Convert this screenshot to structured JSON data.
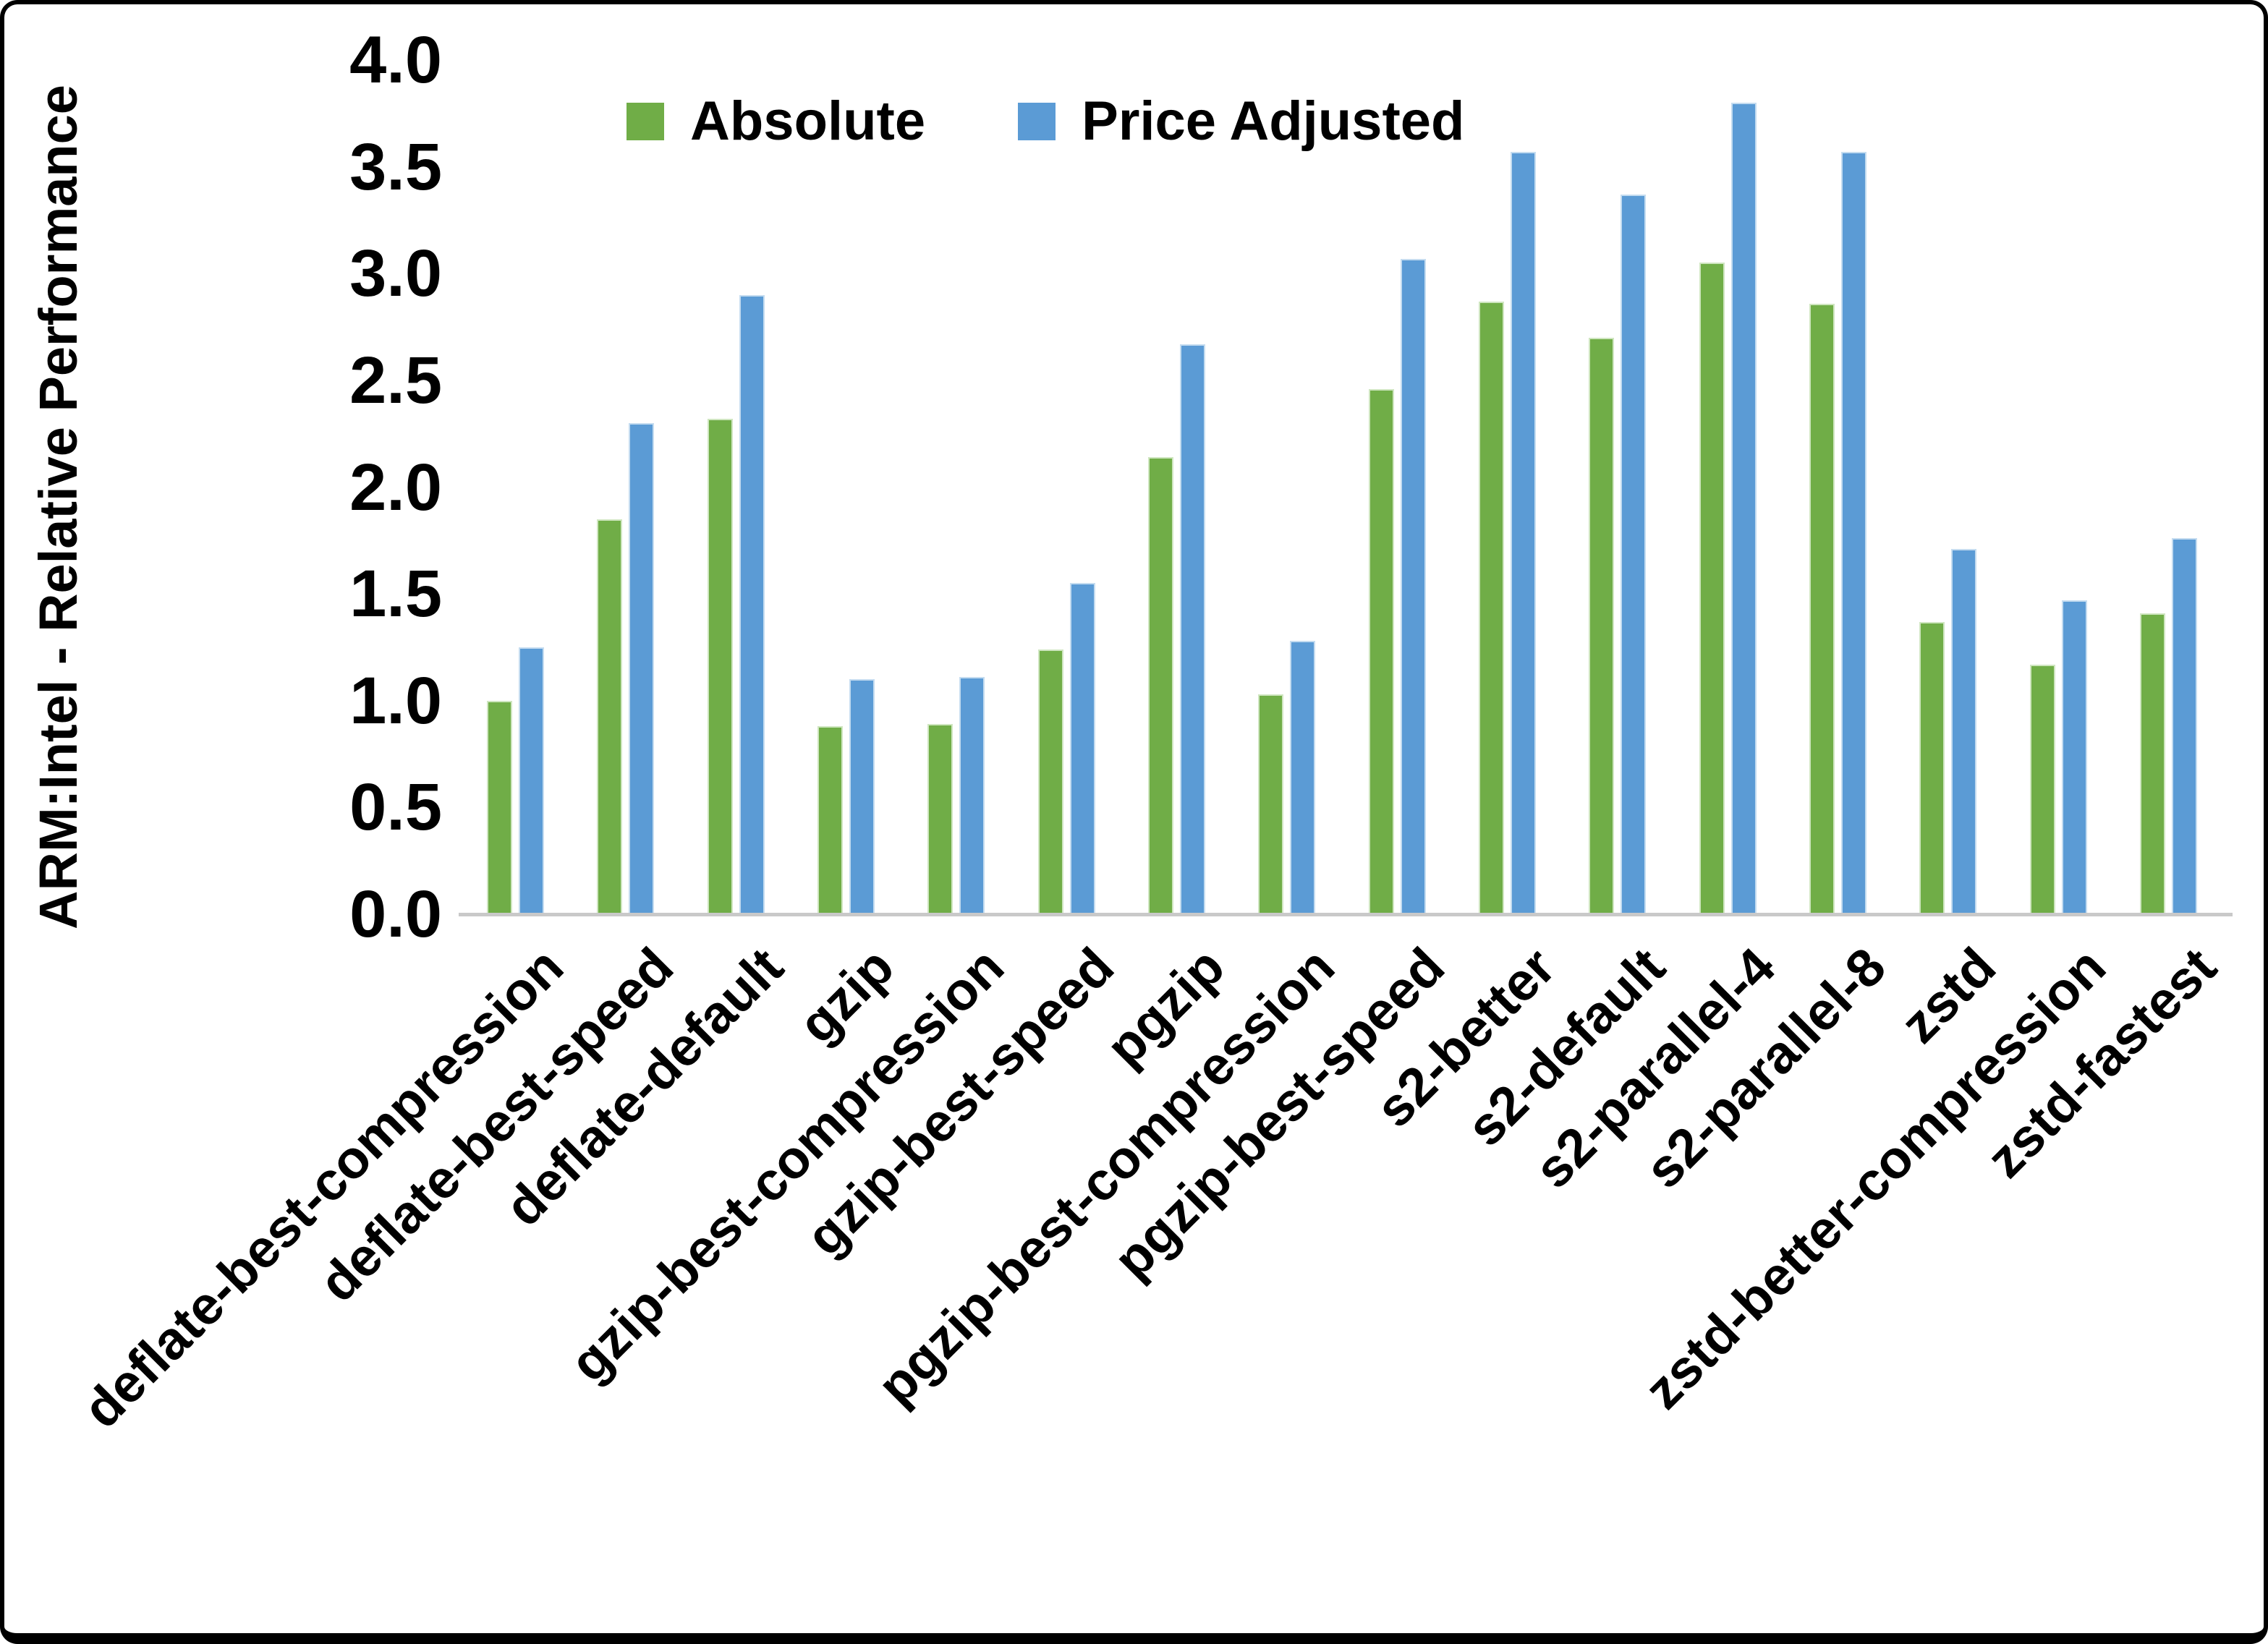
{
  "legend": {
    "items": [
      {
        "label": "Absolute",
        "color": "#70AD47",
        "border": "#cfe6c0"
      },
      {
        "label": "Price Adjusted",
        "color": "#5B9BD5",
        "border": "#c4dcf0"
      }
    ]
  },
  "y_axis": {
    "title": "ARM:Intel - Relative Performance",
    "tick_labels": [
      "0.0",
      "0.5",
      "1.0",
      "1.5",
      "2.0",
      "2.5",
      "3.0",
      "3.5",
      "4.0"
    ]
  },
  "chart_data": {
    "type": "bar",
    "title": "",
    "xlabel": "",
    "ylabel": "ARM:Intel - Relative Performance",
    "ylim": [
      0,
      4
    ],
    "ytick_step": 0.5,
    "grid": false,
    "legend_position": "top",
    "categories": [
      "deflate-best-compression",
      "deflate-best-speed",
      "deflate-default",
      "gzip",
      "gzip-best-compression",
      "gzip-best-speed",
      "pgzip",
      "pgzip-best-compression",
      "pgzip-best-speed",
      "s2-better",
      "s2-default",
      "s2-parallel-4",
      "s2-parallel-8",
      "zstd",
      "zstd-better-compression",
      "zstd-fastest"
    ],
    "series": [
      {
        "name": "Absolute",
        "color": "#70AD47",
        "values": [
          1.0,
          1.85,
          2.32,
          0.88,
          0.89,
          1.24,
          2.14,
          1.03,
          2.46,
          2.87,
          2.7,
          3.05,
          2.86,
          1.37,
          1.17,
          1.41
        ]
      },
      {
        "name": "Price Adjusted",
        "color": "#5B9BD5",
        "values": [
          1.25,
          2.3,
          2.9,
          1.1,
          1.11,
          1.55,
          2.67,
          1.28,
          3.07,
          3.57,
          3.37,
          3.8,
          3.57,
          1.71,
          1.47,
          1.76
        ]
      }
    ]
  }
}
